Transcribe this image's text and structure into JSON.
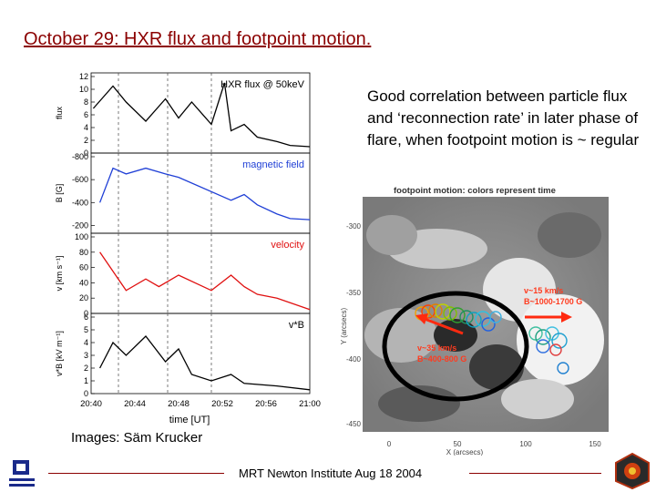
{
  "slide": {
    "title": "October 29: HXR flux and footpoint motion.",
    "note": "Good correlation between particle flux and ‘reconnection rate’ in later phase of flare, when footpoint motion is ~ regular",
    "credit": "Images: Säm Krucker",
    "footer": "MRT Newton Institute Aug 18 2004"
  },
  "chart_data": [
    {
      "type": "line",
      "xlabel": "time [UT]",
      "x_ticks": [
        "20:40",
        "20:44",
        "20:48",
        "20:52",
        "20:56",
        "21:00"
      ],
      "panels": [
        {
          "name": "HXR flux @ 50keV",
          "ylabel": "flux",
          "color": "#000000",
          "yticks": [
            0,
            2,
            4,
            6,
            8,
            10,
            12
          ],
          "x": [
            20.67,
            20.7,
            20.72,
            20.75,
            20.78,
            20.8,
            20.82,
            20.85,
            20.87,
            20.88,
            20.9,
            20.92,
            20.95,
            20.97,
            21.0
          ],
          "values": [
            7.0,
            10.5,
            8.0,
            5.0,
            8.5,
            5.5,
            8.0,
            4.5,
            11.0,
            3.5,
            4.5,
            2.5,
            1.8,
            1.2,
            1.0
          ]
        },
        {
          "name": "magnetic field",
          "ylabel": "B [G]",
          "color": "#1f3fd6",
          "yticks": [
            -800,
            -600,
            -400,
            -200
          ],
          "x": [
            20.68,
            20.7,
            20.72,
            20.75,
            20.78,
            20.8,
            20.88,
            20.9,
            20.92,
            20.95,
            20.97,
            21.0
          ],
          "values": [
            -400,
            -700,
            -650,
            -700,
            -650,
            -620,
            -420,
            -470,
            -380,
            -300,
            -260,
            -250
          ]
        },
        {
          "name": "velocity",
          "ylabel": "v [km s⁻¹]",
          "color": "#e01010",
          "yticks": [
            0,
            20,
            40,
            60,
            80,
            100
          ],
          "x": [
            20.68,
            20.7,
            20.72,
            20.75,
            20.77,
            20.8,
            20.85,
            20.88,
            20.9,
            20.92,
            20.95,
            21.0
          ],
          "values": [
            80,
            55,
            30,
            45,
            35,
            50,
            30,
            50,
            35,
            25,
            20,
            5
          ]
        },
        {
          "name": "v*B",
          "ylabel": "v*B [kV m⁻¹]",
          "color": "#000000",
          "yticks": [
            0,
            1,
            2,
            3,
            4,
            5,
            6
          ],
          "x": [
            20.68,
            20.7,
            20.72,
            20.75,
            20.78,
            20.8,
            20.82,
            20.85,
            20.88,
            20.9,
            20.95,
            21.0
          ],
          "values": [
            2.0,
            4.0,
            3.0,
            4.5,
            2.5,
            3.5,
            1.5,
            1.0,
            1.5,
            0.8,
            0.6,
            0.3
          ]
        }
      ]
    },
    {
      "type": "scatter",
      "title": "footpoint motion: colors represent time",
      "xlabel": "X (arcsecs)",
      "ylabel": "Y (arcsecs)",
      "x_ticks": [
        "0",
        "50",
        "100",
        "150"
      ],
      "y_ticks": [
        "-300",
        "-350",
        "-400",
        "-450"
      ],
      "annotations": [
        {
          "text1": "v~15 km/s",
          "text2": "B~1000-1700 G",
          "color": "#ff3b1f"
        },
        {
          "text1": "v~35 km/s",
          "text2": "B~400-800 G",
          "color": "#ff3b1f"
        }
      ]
    }
  ]
}
